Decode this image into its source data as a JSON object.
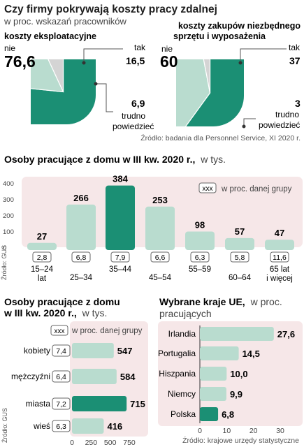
{
  "colors": {
    "dark": "#1b8f74",
    "light": "#b9dccf",
    "panel": "#f6e7e8",
    "bg": "#ffffff",
    "text": "#1e1e1e",
    "muted": "#555555",
    "grey": "#d4d4d4"
  },
  "pies": {
    "title": "Czy firmy pokrywają koszty pracy zdalnej",
    "subtitle": "w proc. wskazań pracowników",
    "source": "Źródło: badania dla Personnel Service, XI 2020 r.",
    "left": {
      "title": "koszty eksploatacyjne",
      "labels": {
        "no": "nie",
        "yes": "tak",
        "unsure_line1": "trudno",
        "unsure_line2": "powiedzieć"
      },
      "values": {
        "no": "76,6",
        "yes": "16,5",
        "unsure": "6,9"
      }
    },
    "right": {
      "title_line1": "koszty zakupów niezbędnego",
      "title_line2": "sprzętu i wyposażenia",
      "labels": {
        "no": "nie",
        "yes": "tak",
        "unsure_line1": "trudno",
        "unsure_line2": "powiedzieć"
      },
      "values": {
        "no": "60",
        "yes": "37",
        "unsure": "3"
      }
    }
  },
  "chart_data": [
    {
      "type": "pie",
      "title": "koszty eksploatacyjne",
      "categories": [
        "nie",
        "tak",
        "trudno powiedzieć"
      ],
      "values": [
        76.6,
        16.5,
        6.9
      ],
      "colors": [
        "#1b8f74",
        "#b9dccf",
        "#d4d4d4"
      ]
    },
    {
      "type": "pie",
      "title": "koszty zakupów niezbędnego sprzętu i wyposażenia",
      "categories": [
        "nie",
        "tak",
        "trudno powiedzieć"
      ],
      "values": [
        60,
        37,
        3
      ],
      "colors": [
        "#1b8f74",
        "#b9dccf",
        "#d4d4d4"
      ]
    },
    {
      "type": "bar",
      "title": "Osoby pracujące z domu w III kw. 2020 r.",
      "subtitle": "w tys.",
      "categories": [
        "15–24 lat",
        "25–34",
        "35–44",
        "45–54",
        "55–59",
        "60–64",
        "65 lat i więcej"
      ],
      "values": [
        27,
        266,
        384,
        253,
        98,
        57,
        47
      ],
      "percent_of_group": [
        "2,8",
        "6,8",
        "7,9",
        "6,6",
        "6,3",
        "5,8",
        "11,6"
      ],
      "highlight_index": 2,
      "yticks": [
        0,
        100,
        200,
        300,
        400
      ],
      "ylim": [
        0,
        400
      ],
      "legend": "w proc. danej grupy",
      "legend_box": "xxx",
      "source": "Źródło: GUS"
    },
    {
      "type": "bar",
      "orientation": "horizontal",
      "title": "Osoby pracujące z domu w III kw. 2020 r.",
      "subtitle": "w tys.",
      "categories": [
        "kobiety",
        "mężczyźni",
        "miasta",
        "wieś"
      ],
      "values": [
        547,
        584,
        715,
        416
      ],
      "percent_of_group": [
        "7,4",
        "6,4",
        "7,2",
        "6,3"
      ],
      "highlight_index": 2,
      "xticks": [
        0,
        250,
        500,
        750
      ],
      "xlim": [
        0,
        750
      ],
      "legend": "w proc. danej grupy",
      "legend_box": "xxx",
      "source": "Źródło: GUS"
    },
    {
      "type": "bar",
      "orientation": "horizontal",
      "title": "Wybrane kraje UE,",
      "subtitle": "w proc. pracujących",
      "categories": [
        "Irlandia",
        "Portugalia",
        "Hiszpania",
        "Niemcy",
        "Polska"
      ],
      "values": [
        27.6,
        14.5,
        10.0,
        9.9,
        6.8
      ],
      "labels": [
        "27,6",
        "14,5",
        "10,0",
        "9,9",
        "6,8"
      ],
      "highlight_index": 4,
      "xticks": [
        0,
        10,
        20,
        30
      ],
      "xlim": [
        0,
        30
      ],
      "source": "Źródło: krajowe urzędy statystyczne"
    }
  ],
  "bars_texts": {
    "title_bold": "Osoby pracujące z domu w III kw. 2020 r.,",
    "title_rest": "w tys."
  },
  "gender_texts": {
    "title_line1": "Osoby pracujące z domu",
    "title_line2_bold": "w III kw. 2020 r.,",
    "title_line2_rest": "w tys."
  },
  "eu_texts": {
    "title_bold": "Wybrane kraje UE,",
    "title_rest": "w proc.",
    "title_line2": "pracujących"
  }
}
